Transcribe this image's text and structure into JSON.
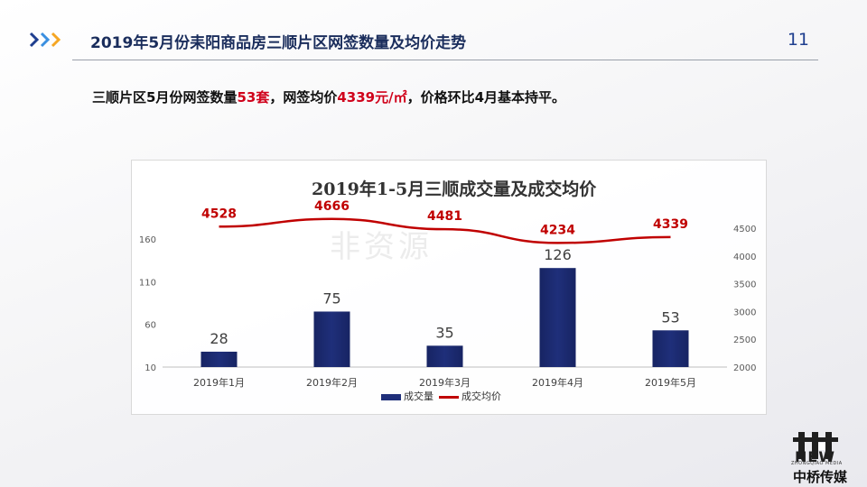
{
  "header": {
    "title": "2019年5月份耒阳商品房三顺片区网签数量及均价走势",
    "page_number": "11"
  },
  "summary": {
    "part1": "三顺片区5月份网签数量",
    "units": "53套",
    "part2": "，网签均价",
    "price": "4339元/㎡",
    "part3": "，价格环比4月基本持平。"
  },
  "watermark": "非资源",
  "logo": {
    "brand_en": "NEW",
    "brand_sub": "ZHONGQIAO MEDIA",
    "brand_cn": "中桥传媒"
  },
  "colors": {
    "bar": "#1f2f7a",
    "line": "#c00000",
    "header_title": "#1a2d5c",
    "accent_red": "#d0021b"
  },
  "chart_data": {
    "type": "bar+line",
    "title": "2019年1-5月三顺成交量及成交均价",
    "categories": [
      "2019年1月",
      "2019年2月",
      "2019年3月",
      "2019年4月",
      "2019年5月"
    ],
    "series": [
      {
        "name": "成交量",
        "type": "bar",
        "axis": "left",
        "values": [
          28,
          75,
          35,
          126,
          53
        ]
      },
      {
        "name": "成交均价",
        "type": "line",
        "axis": "right",
        "values": [
          4528,
          4666,
          4481,
          4234,
          4339
        ]
      }
    ],
    "left_axis": {
      "ticks": [
        10,
        60,
        110,
        160
      ],
      "range": [
        10,
        160
      ]
    },
    "right_axis": {
      "ticks": [
        2000,
        2500,
        3000,
        3500,
        4000,
        4500
      ],
      "range": [
        2000,
        4500
      ]
    },
    "legend_position": "bottom",
    "grid": false
  }
}
